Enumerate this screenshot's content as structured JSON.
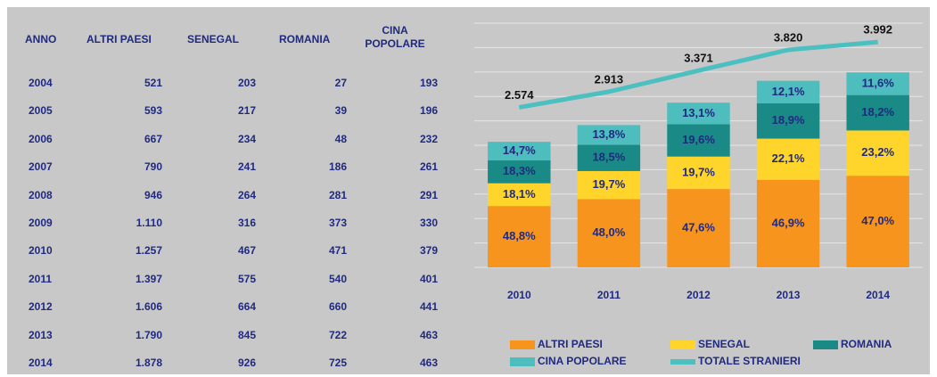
{
  "table": {
    "header": [
      "ANNO",
      "ALTRI PAESI",
      "SENEGAL",
      "ROMANIA",
      "CINA POPOLARE"
    ],
    "rows": [
      [
        "2004",
        "521",
        "203",
        "27",
        "193"
      ],
      [
        "2005",
        "593",
        "217",
        "39",
        "196"
      ],
      [
        "2006",
        "667",
        "234",
        "48",
        "232"
      ],
      [
        "2007",
        "790",
        "241",
        "186",
        "261"
      ],
      [
        "2008",
        "946",
        "264",
        "281",
        "291"
      ],
      [
        "2009",
        "1.110",
        "316",
        "373",
        "330"
      ],
      [
        "2010",
        "1.257",
        "467",
        "471",
        "379"
      ],
      [
        "2011",
        "1.397",
        "575",
        "540",
        "401"
      ],
      [
        "2012",
        "1.606",
        "664",
        "660",
        "441"
      ],
      [
        "2013",
        "1.790",
        "845",
        "722",
        "463"
      ],
      [
        "2014",
        "1.878",
        "926",
        "725",
        "463"
      ]
    ]
  },
  "chart_data": {
    "type": "bar",
    "stacked": true,
    "categories": [
      "2010",
      "2011",
      "2012",
      "2013",
      "2014"
    ],
    "series": [
      {
        "name": "ALTRI PAESI",
        "color": "#f7941d",
        "values": [
          48.8,
          48.0,
          47.6,
          46.9,
          47.0
        ],
        "value_labels": [
          "48,8%",
          "48,0%",
          "47,6%",
          "46,9%",
          "47,0%"
        ]
      },
      {
        "name": "SENEGAL",
        "color": "#ffd52b",
        "values": [
          18.1,
          19.7,
          19.7,
          22.1,
          23.2
        ],
        "value_labels": [
          "18,1%",
          "19,7%",
          "19,7%",
          "22,1%",
          "23,2%"
        ]
      },
      {
        "name": "ROMANIA",
        "color": "#1a8a86",
        "values": [
          18.3,
          18.5,
          19.6,
          18.9,
          18.2
        ],
        "value_labels": [
          "18,3%",
          "18,5%",
          "19,6%",
          "18,9%",
          "18,2%"
        ]
      },
      {
        "name": "CINA POPOLARE",
        "color": "#4dbdbd",
        "values": [
          14.7,
          13.8,
          13.1,
          12.1,
          11.6
        ],
        "value_labels": [
          "14,7%",
          "13,8%",
          "13,1%",
          "12,1%",
          "11,6%"
        ]
      },
      {
        "name": "TOTALE STRANIERI",
        "color": "#4cc0c0",
        "type": "line",
        "axis": "y2",
        "values": [
          2574,
          2913,
          3371,
          3820,
          3992
        ],
        "value_labels": [
          "2.574",
          "2.913",
          "3.371",
          "3.820",
          "3.992"
        ]
      }
    ],
    "ylim": [
      0,
      5000
    ],
    "yticks": [
      0,
      500,
      1000,
      1500,
      2000,
      2500,
      3000,
      3500,
      4000,
      4500,
      5000
    ],
    "y2lim": [
      -900,
      4400
    ],
    "grid": true,
    "legend": "bottom"
  }
}
